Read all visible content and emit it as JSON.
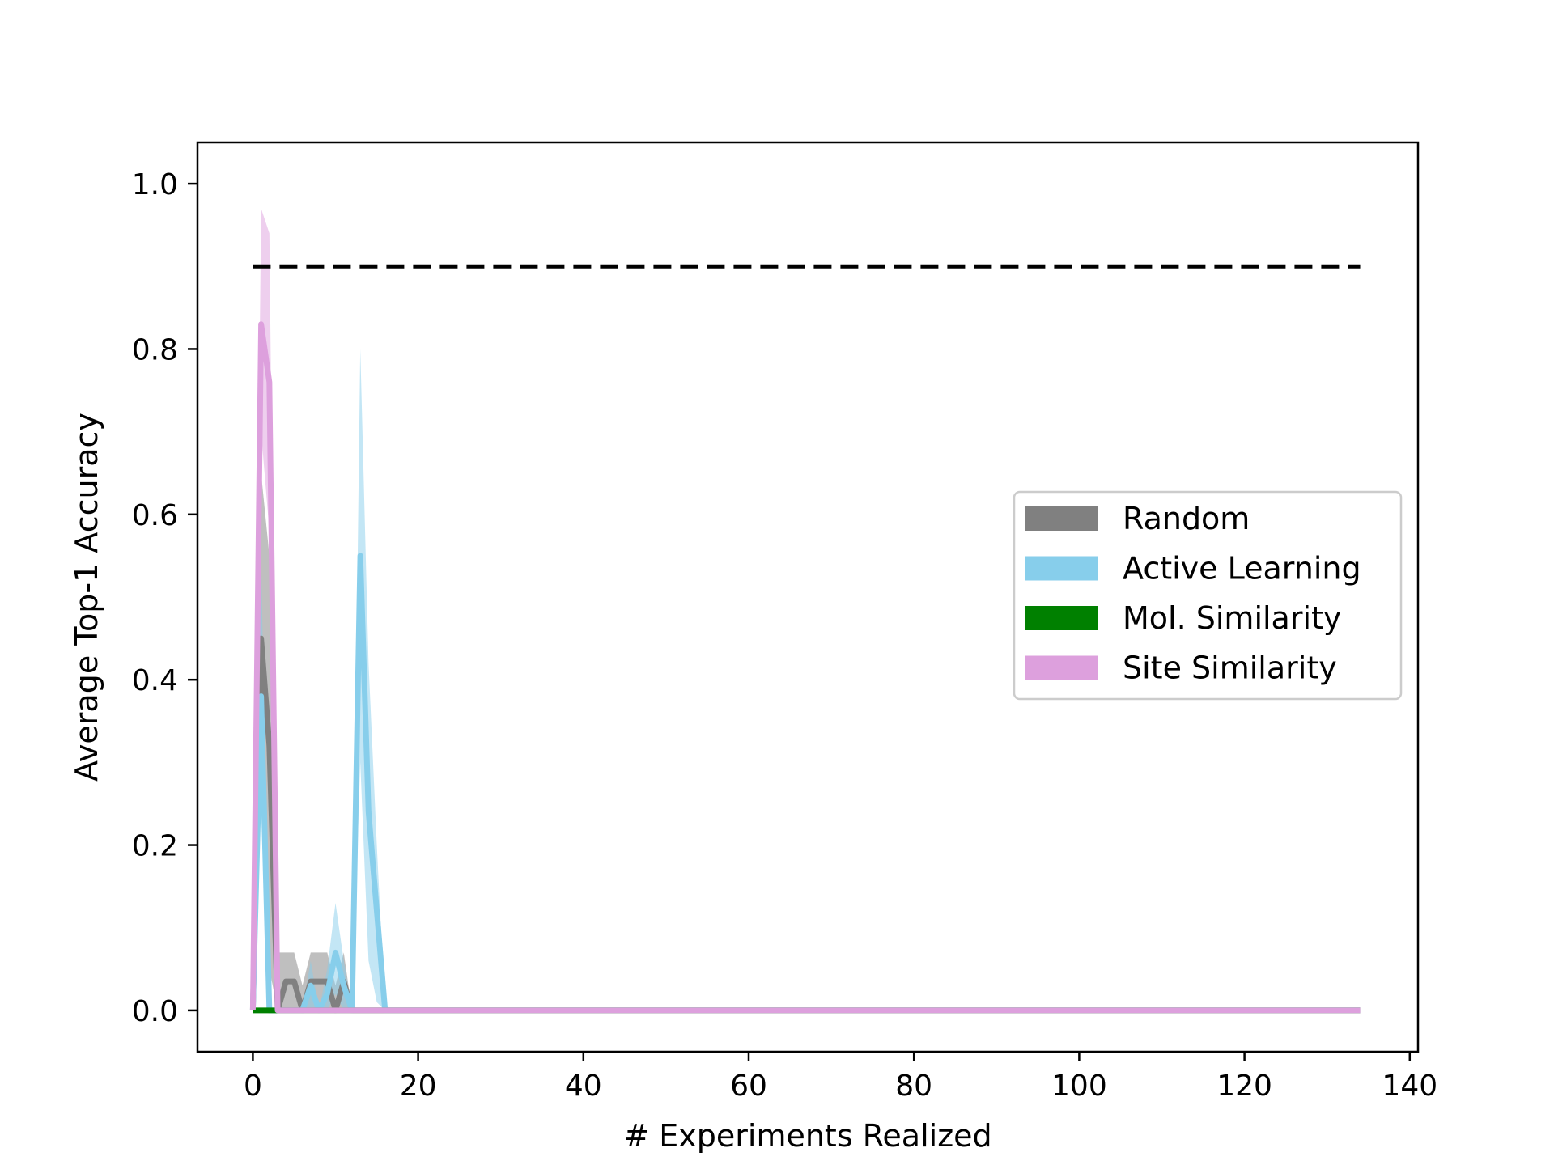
{
  "chart_data": {
    "type": "line",
    "title": "",
    "xlabel": "# Experiments Realized",
    "ylabel": "Average Top-1 Accuracy",
    "xlim": [
      -6.7,
      141
    ],
    "ylim": [
      -0.05,
      1.05
    ],
    "xticks": [
      0,
      20,
      40,
      60,
      80,
      100,
      120,
      140
    ],
    "yticks": [
      0.0,
      0.2,
      0.4,
      0.6,
      0.8,
      1.0
    ],
    "xtick_labels": [
      "0",
      "20",
      "40",
      "60",
      "80",
      "100",
      "120",
      "140"
    ],
    "ytick_labels": [
      "0.0",
      "0.2",
      "0.4",
      "0.6",
      "0.8",
      "1.0"
    ],
    "grid": false,
    "legend_position": "center-right",
    "reference_line": {
      "y": 0.9,
      "x_start": 0,
      "x_end": 134,
      "style": "dashed",
      "color": "#000000"
    },
    "series": [
      {
        "name": "Random",
        "color": "#808080",
        "x": [
          0,
          1,
          2,
          3,
          4,
          5,
          6,
          7,
          8,
          9,
          10,
          11,
          12,
          134
        ],
        "mean": [
          0,
          0.45,
          0.32,
          0,
          0.035,
          0.035,
          0,
          0.035,
          0.035,
          0.035,
          0,
          0.035,
          0,
          0
        ],
        "lower": [
          0,
          0.25,
          0.05,
          0,
          0,
          0,
          0,
          0,
          0,
          0,
          0,
          0,
          0,
          0
        ],
        "upper": [
          0,
          0.65,
          0.55,
          0.07,
          0.07,
          0.07,
          0.03,
          0.07,
          0.07,
          0.07,
          0.03,
          0.07,
          0,
          0
        ]
      },
      {
        "name": "Active Learning",
        "color": "#87CEEB",
        "x": [
          0,
          1,
          2,
          3,
          4,
          5,
          6,
          7,
          8,
          9,
          10,
          11,
          12,
          13,
          14,
          15,
          16,
          17,
          134
        ],
        "mean": [
          0,
          0.38,
          0,
          0,
          0,
          0,
          0,
          0.03,
          0,
          0.02,
          0.07,
          0.03,
          0,
          0.55,
          0.24,
          0.12,
          0,
          0,
          0
        ],
        "lower": [
          0,
          0.25,
          0,
          0,
          0,
          0,
          0,
          0,
          0,
          0,
          0.02,
          0,
          0,
          0.3,
          0.06,
          0.01,
          0,
          0,
          0
        ],
        "upper": [
          0,
          0.55,
          0,
          0,
          0,
          0,
          0,
          0.06,
          0,
          0.05,
          0.13,
          0.06,
          0,
          0.8,
          0.42,
          0.2,
          0,
          0,
          0
        ]
      },
      {
        "name": "Mol. Similarity",
        "color": "#008000",
        "x": [
          0,
          1,
          2,
          3,
          134
        ],
        "mean": [
          0,
          0,
          0,
          0,
          0
        ],
        "lower": [
          0,
          0,
          0,
          0,
          0
        ],
        "upper": [
          0,
          0,
          0,
          0,
          0
        ]
      },
      {
        "name": "Site Similarity",
        "color": "#DDA0DD",
        "x": [
          0,
          1,
          2,
          3,
          134
        ],
        "mean": [
          0,
          0.83,
          0.76,
          0,
          0
        ],
        "lower": [
          0,
          0.7,
          0.58,
          0,
          0
        ],
        "upper": [
          0,
          0.97,
          0.94,
          0,
          0
        ]
      }
    ]
  }
}
